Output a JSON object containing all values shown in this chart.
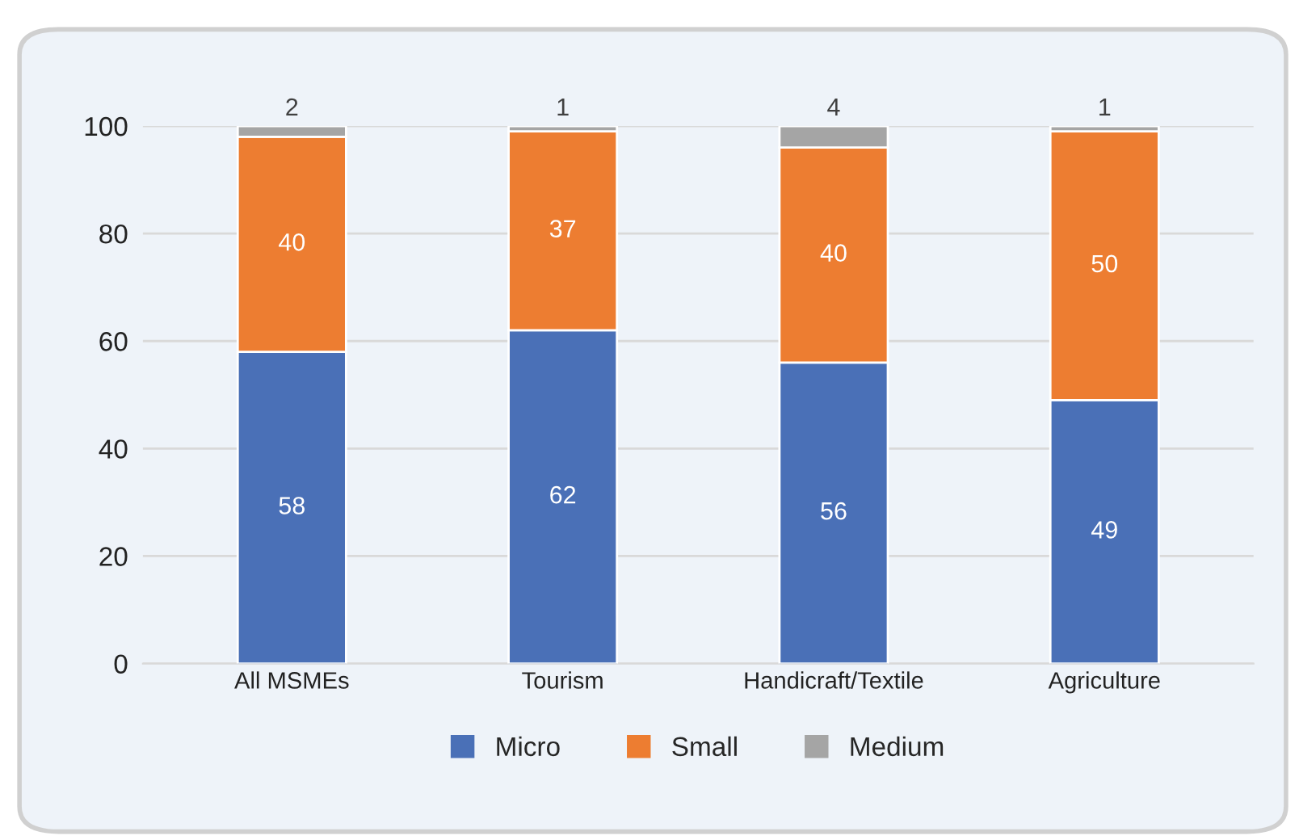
{
  "chart_data": {
    "type": "bar",
    "stacked": true,
    "data_labels": true,
    "categories": [
      "All MSMEs",
      "Tourism",
      "Handicraft/Textile",
      "Agriculture"
    ],
    "series": [
      {
        "name": "Micro",
        "color": "#4a70b7",
        "values": [
          58,
          62,
          56,
          49
        ]
      },
      {
        "name": "Small",
        "color": "#ed7d31",
        "values": [
          40,
          37,
          40,
          50
        ]
      },
      {
        "name": "Medium",
        "color": "#a5a5a5",
        "values": [
          2,
          1,
          4,
          1
        ]
      }
    ],
    "ylim": [
      0,
      100
    ],
    "yticks": [
      0,
      20,
      40,
      60,
      80,
      100
    ],
    "grid": "y",
    "legend": "bottom"
  }
}
